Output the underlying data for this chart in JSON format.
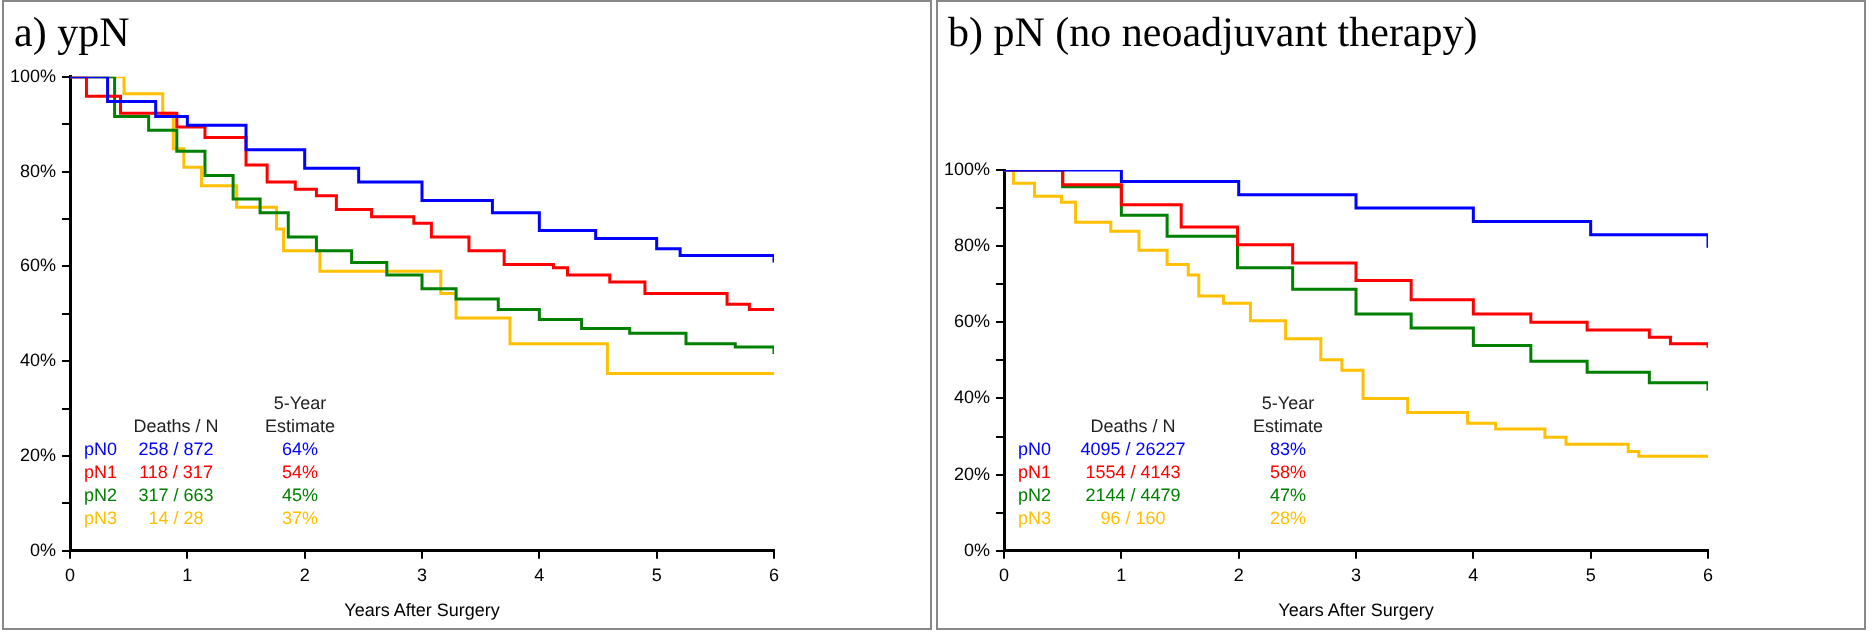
{
  "chart_data": [
    {
      "type": "step",
      "title": "a) ypN",
      "xlabel": "Years After Surgery",
      "xlim": [
        0,
        6
      ],
      "xticks": [
        0,
        1,
        2,
        3,
        4,
        5,
        6
      ],
      "ylim": [
        0,
        100
      ],
      "yticks": [
        {
          "value": 0,
          "label": "0%"
        },
        {
          "value": 10,
          "label": null
        },
        {
          "value": 20,
          "label": "20%"
        },
        {
          "value": 30,
          "label": null
        },
        {
          "value": 40,
          "label": "40%"
        },
        {
          "value": 50,
          "label": null
        },
        {
          "value": 60,
          "label": "60%"
        },
        {
          "value": 70,
          "label": null
        },
        {
          "value": 80,
          "label": "80%"
        },
        {
          "value": 90,
          "label": null
        },
        {
          "value": 100,
          "label": "100%"
        }
      ],
      "grid": false,
      "legend": "bottom left",
      "annotations": [
        "Deaths / N",
        "5-Year\nEstimate",
        "258 / 872",
        "64%",
        "118 / 317",
        "54%",
        "317 / 663",
        "45%",
        "14 / 28",
        "37%"
      ],
      "series": [
        {
          "name": "pN0",
          "color": "#0000ff",
          "x": [
            0,
            0.32,
            0.73,
            1.0,
            1.5,
            2.0,
            2.46,
            3.0,
            3.6,
            4.0,
            4.48,
            5.0,
            5.2,
            6.0
          ],
          "values": [
            100,
            94.8,
            91.6,
            89.8,
            84.6,
            80.7,
            77.8,
            73.9,
            71.3,
            67.6,
            65.9,
            63.7,
            62.3,
            60.8
          ]
        },
        {
          "name": "pN1",
          "color": "#ff0000",
          "x": [
            0,
            0.14,
            0.43,
            0.91,
            1.15,
            1.5,
            1.68,
            1.92,
            2.1,
            2.27,
            2.57,
            2.93,
            3.08,
            3.4,
            3.7,
            4.12,
            4.24,
            4.6,
            4.9,
            5.52,
            5.6,
            5.79,
            6.0
          ],
          "values": [
            100,
            95.9,
            92.3,
            89.4,
            87.2,
            81.4,
            77.8,
            76.3,
            74.9,
            72,
            70.5,
            69.1,
            66.2,
            63.3,
            60.4,
            59.7,
            58.2,
            56.7,
            54.3,
            54.3,
            52,
            50.9,
            50.9
          ]
        },
        {
          "name": "pN2",
          "color": "#008000",
          "x": [
            0,
            0.38,
            0.67,
            0.91,
            1.15,
            1.39,
            1.62,
            1.86,
            2.1,
            2.4,
            2.7,
            3.0,
            3.29,
            3.65,
            4.0,
            4.36,
            4.77,
            5.25,
            5.67,
            6.0
          ],
          "values": [
            100,
            91.6,
            88.7,
            84.3,
            79.2,
            74.2,
            71.3,
            66.2,
            63.3,
            60.8,
            58.2,
            55.3,
            53.1,
            50.9,
            48.8,
            46.9,
            45.9,
            43.7,
            43,
            41.5
          ]
        },
        {
          "name": "pN3",
          "color": "#ffc000",
          "x": [
            0,
            0.46,
            0.79,
            0.88,
            0.97,
            1.12,
            1.42,
            1.76,
            1.82,
            2.13,
            3.16,
            3.29,
            3.75,
            4.58,
            6.0
          ],
          "values": [
            100,
            96.4,
            92.3,
            84.8,
            80.9,
            77,
            72.5,
            67.9,
            63.3,
            59,
            54.3,
            49.1,
            43.7,
            37.4,
            37.4
          ]
        }
      ]
    },
    {
      "type": "step",
      "title": "b) pN (no neoadjuvant therapy)",
      "xlabel": "Years After Surgery",
      "xlim": [
        0,
        6
      ],
      "xticks": [
        0,
        1,
        2,
        3,
        4,
        5,
        6
      ],
      "ylim": [
        0,
        100
      ],
      "yticks": [
        {
          "value": 0,
          "label": "0%"
        },
        {
          "value": 10,
          "label": null
        },
        {
          "value": 20,
          "label": "20%"
        },
        {
          "value": 30,
          "label": null
        },
        {
          "value": 40,
          "label": "40%"
        },
        {
          "value": 50,
          "label": null
        },
        {
          "value": 60,
          "label": "60%"
        },
        {
          "value": 70,
          "label": null
        },
        {
          "value": 80,
          "label": "80%"
        },
        {
          "value": 90,
          "label": null
        },
        {
          "value": 100,
          "label": "100%"
        }
      ],
      "grid": false,
      "legend": "bottom left",
      "annotations": [
        "Deaths / N",
        "5-Year\nEstimate",
        "4095 / 26227",
        "83%",
        "1554 / 4143",
        "58%",
        "2144 / 4479",
        "47%",
        "96 / 160",
        "28%"
      ],
      "series": [
        {
          "name": "pN0",
          "color": "#0000ff",
          "x": [
            0,
            1,
            2,
            3,
            4,
            5,
            6
          ],
          "values": [
            100,
            97,
            93.5,
            90,
            86.5,
            83,
            79.6
          ]
        },
        {
          "name": "pN1",
          "color": "#ff0000",
          "x": [
            0,
            0.5,
            1.0,
            1.51,
            1.99,
            2.46,
            3.0,
            3.47,
            4.0,
            4.49,
            4.97,
            5.5,
            5.68,
            6.0
          ],
          "values": [
            100,
            96.1,
            90.9,
            85,
            80.4,
            75.6,
            71,
            65.9,
            62.2,
            60,
            58,
            56.1,
            54.4,
            53.3
          ]
        },
        {
          "name": "pN2",
          "color": "#008000",
          "x": [
            0,
            0.5,
            1.0,
            1.39,
            1.99,
            2.46,
            3.0,
            3.47,
            4.0,
            4.49,
            4.97,
            5.5,
            6.0
          ],
          "values": [
            100,
            95.6,
            88.1,
            82.6,
            74.3,
            68.7,
            62.2,
            58.5,
            53.9,
            49.8,
            46.9,
            44.1,
            42
          ]
        },
        {
          "name": "pN3",
          "color": "#ffc000",
          "x": [
            0,
            0.08,
            0.26,
            0.49,
            0.61,
            0.91,
            1.15,
            1.39,
            1.57,
            1.66,
            1.87,
            2.1,
            2.4,
            2.7,
            2.88,
            3.06,
            3.44,
            3.95,
            4.19,
            4.61,
            4.79,
            5.32,
            5.41,
            6.0
          ],
          "values": [
            100,
            96.5,
            93.1,
            91.5,
            86.3,
            83.9,
            78.9,
            75.2,
            72.4,
            66.9,
            65,
            60.4,
            55.7,
            50.2,
            47.4,
            40,
            36.3,
            33.5,
            32,
            29.8,
            28,
            26.1,
            24.8,
            24.8
          ]
        }
      ]
    }
  ]
}
